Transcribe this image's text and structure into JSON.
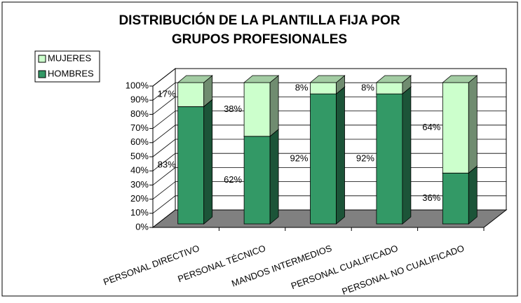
{
  "chart_data": {
    "type": "bar",
    "stacked": true,
    "title": "DISTRIBUCIÓN DE LA PLANTILLA FIJA POR GRUPOS PROFESIONALES",
    "categories": [
      "PERSONAL DIRECTIVO",
      "PERSONAL TÉCNICO",
      "MANDOS INTERMEDIOS",
      "PERSONAL CUALIFICADO",
      "PERSONAL NO CUALIFICADO"
    ],
    "series": [
      {
        "name": "HOMBRES",
        "color": "#339966",
        "values": [
          83,
          62,
          92,
          92,
          36
        ],
        "value_labels": [
          "83%",
          "62%",
          "92%",
          "92%",
          "36%"
        ]
      },
      {
        "name": "MUJERES",
        "color": "#ccffcc",
        "values": [
          17,
          38,
          8,
          8,
          64
        ],
        "value_labels": [
          "17%",
          "38%",
          "8%",
          "8%",
          "64%"
        ]
      }
    ],
    "ylim": [
      0,
      100
    ],
    "yticks": [
      {
        "value": 0,
        "label": "0%"
      },
      {
        "value": 10,
        "label": "10%"
      },
      {
        "value": 20,
        "label": "20%"
      },
      {
        "value": 30,
        "label": "30%"
      },
      {
        "value": 40,
        "label": "40%"
      },
      {
        "value": 50,
        "label": "50%"
      },
      {
        "value": 60,
        "label": "60%"
      },
      {
        "value": 70,
        "label": "70%"
      },
      {
        "value": 80,
        "label": "80%"
      },
      {
        "value": 90,
        "label": "90%"
      },
      {
        "value": 100,
        "label": "100%"
      }
    ],
    "grid": true,
    "legend": "top-left"
  }
}
